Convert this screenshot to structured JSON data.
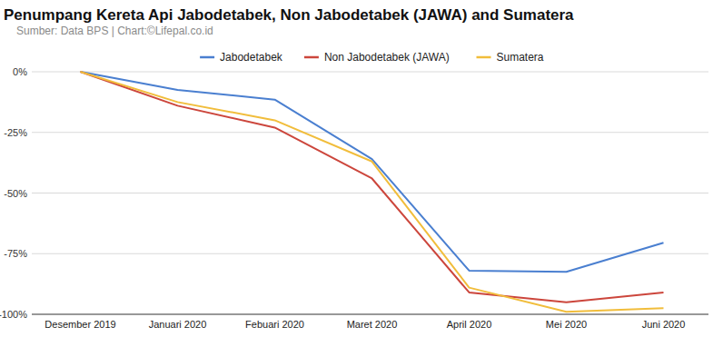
{
  "chart_data": {
    "type": "line",
    "title": "Penumpang Kereta Api Jabodetabek, Non Jabodetabek (JAWA) and Sumatera",
    "subtitle": "Sumber: Data BPS | Chart:©Lifepal.co.id",
    "categories": [
      "Desember 2019",
      "Januari 2020",
      "Febuari 2020",
      "Maret 2020",
      "April 2020",
      "Mei 2020",
      "Juni 2020"
    ],
    "series": [
      {
        "name": "Jabodetabek",
        "color": "#4a7fd0",
        "values": [
          0,
          -7.5,
          -11.5,
          -36,
          -82,
          -82.5,
          -70.5
        ]
      },
      {
        "name": "Non Jabodetabek (JAWA)",
        "color": "#cc463c",
        "values": [
          0,
          -14,
          -23,
          -44,
          -91,
          -95,
          -91
        ]
      },
      {
        "name": "Sumatera",
        "color": "#f1bd3b",
        "values": [
          0,
          -12.5,
          -20,
          -37,
          -89,
          -99,
          -97.5
        ]
      }
    ],
    "ylim": [
      -100,
      0
    ],
    "yticks": [
      {
        "value": 0,
        "label": "0%"
      },
      {
        "value": -25,
        "label": "-25%"
      },
      {
        "value": -50,
        "label": "-50%"
      },
      {
        "value": -75,
        "label": "-75%"
      },
      {
        "value": -100,
        "label": "-100%"
      }
    ],
    "grid": true,
    "legend": "top"
  }
}
